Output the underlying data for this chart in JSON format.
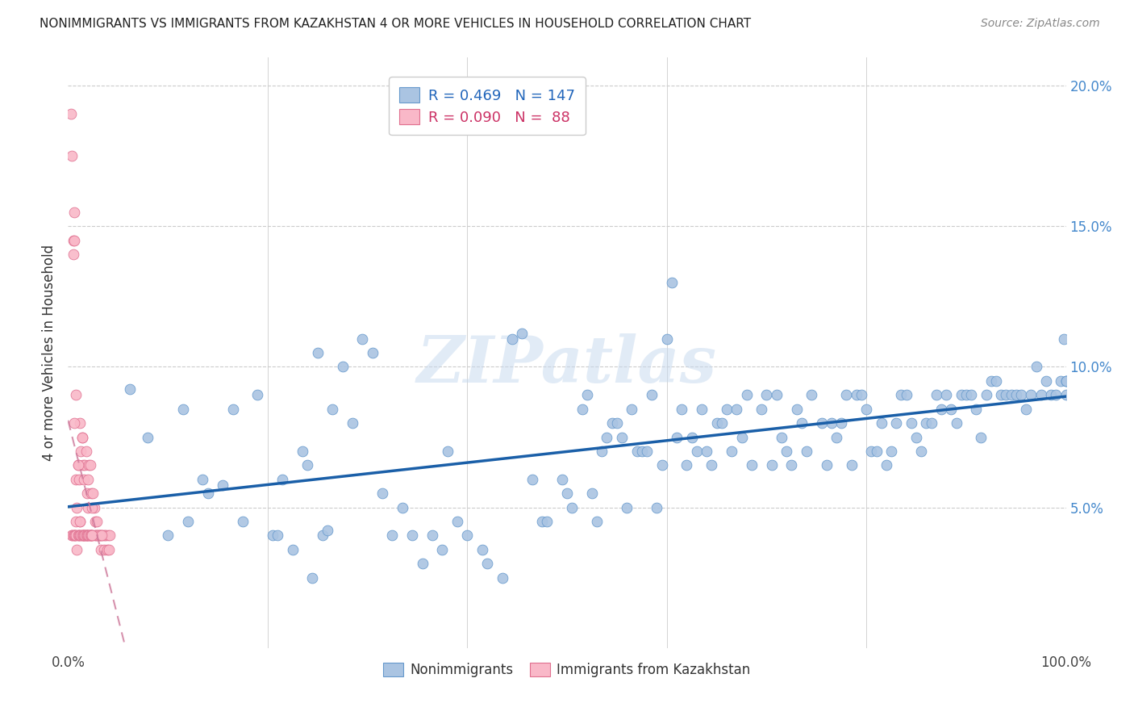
{
  "title": "NONIMMIGRANTS VS IMMIGRANTS FROM KAZAKHSTAN 4 OR MORE VEHICLES IN HOUSEHOLD CORRELATION CHART",
  "source": "Source: ZipAtlas.com",
  "ylabel": "4 or more Vehicles in Household",
  "xmin": 0.0,
  "xmax": 1.0,
  "ymin": 0.0,
  "ymax": 0.21,
  "blue_R": 0.469,
  "blue_N": 147,
  "pink_R": 0.09,
  "pink_N": 88,
  "blue_scatter_color": "#aac4e2",
  "blue_edge_color": "#6699cc",
  "pink_scatter_color": "#f9b8c8",
  "pink_edge_color": "#e07090",
  "blue_line_color": "#1a5fa8",
  "pink_line_color": "#cc7799",
  "watermark": "ZIPatlas",
  "legend_blue_label": "Nonimmigrants",
  "legend_pink_label": "Immigrants from Kazakhstan",
  "blue_x": [
    0.062,
    0.08,
    0.1,
    0.115,
    0.12,
    0.135,
    0.14,
    0.155,
    0.165,
    0.175,
    0.19,
    0.205,
    0.21,
    0.215,
    0.225,
    0.235,
    0.24,
    0.245,
    0.25,
    0.255,
    0.26,
    0.265,
    0.275,
    0.285,
    0.295,
    0.305,
    0.315,
    0.325,
    0.335,
    0.345,
    0.355,
    0.365,
    0.375,
    0.38,
    0.39,
    0.4,
    0.415,
    0.42,
    0.435,
    0.445,
    0.455,
    0.465,
    0.475,
    0.48,
    0.495,
    0.5,
    0.505,
    0.515,
    0.52,
    0.525,
    0.53,
    0.535,
    0.54,
    0.545,
    0.55,
    0.555,
    0.56,
    0.565,
    0.57,
    0.575,
    0.58,
    0.585,
    0.59,
    0.595,
    0.6,
    0.605,
    0.61,
    0.615,
    0.62,
    0.625,
    0.63,
    0.635,
    0.64,
    0.645,
    0.65,
    0.655,
    0.66,
    0.665,
    0.67,
    0.675,
    0.68,
    0.685,
    0.695,
    0.7,
    0.705,
    0.71,
    0.715,
    0.72,
    0.725,
    0.73,
    0.735,
    0.74,
    0.745,
    0.755,
    0.76,
    0.765,
    0.77,
    0.775,
    0.78,
    0.785,
    0.79,
    0.795,
    0.8,
    0.805,
    0.81,
    0.815,
    0.82,
    0.825,
    0.83,
    0.835,
    0.84,
    0.845,
    0.85,
    0.855,
    0.86,
    0.865,
    0.87,
    0.875,
    0.88,
    0.885,
    0.89,
    0.895,
    0.9,
    0.905,
    0.91,
    0.915,
    0.92,
    0.925,
    0.93,
    0.935,
    0.94,
    0.945,
    0.95,
    0.955,
    0.96,
    0.965,
    0.97,
    0.975,
    0.98,
    0.985,
    0.99,
    0.995,
    0.998,
    1.0,
    1.0,
    1.0,
    1.0
  ],
  "blue_y": [
    0.092,
    0.075,
    0.04,
    0.085,
    0.045,
    0.06,
    0.055,
    0.058,
    0.085,
    0.045,
    0.09,
    0.04,
    0.04,
    0.06,
    0.035,
    0.07,
    0.065,
    0.025,
    0.105,
    0.04,
    0.042,
    0.085,
    0.1,
    0.08,
    0.11,
    0.105,
    0.055,
    0.04,
    0.05,
    0.04,
    0.03,
    0.04,
    0.035,
    0.07,
    0.045,
    0.04,
    0.035,
    0.03,
    0.025,
    0.11,
    0.112,
    0.06,
    0.045,
    0.045,
    0.06,
    0.055,
    0.05,
    0.085,
    0.09,
    0.055,
    0.045,
    0.07,
    0.075,
    0.08,
    0.08,
    0.075,
    0.05,
    0.085,
    0.07,
    0.07,
    0.07,
    0.09,
    0.05,
    0.065,
    0.11,
    0.13,
    0.075,
    0.085,
    0.065,
    0.075,
    0.07,
    0.085,
    0.07,
    0.065,
    0.08,
    0.08,
    0.085,
    0.07,
    0.085,
    0.075,
    0.09,
    0.065,
    0.085,
    0.09,
    0.065,
    0.09,
    0.075,
    0.07,
    0.065,
    0.085,
    0.08,
    0.07,
    0.09,
    0.08,
    0.065,
    0.08,
    0.075,
    0.08,
    0.09,
    0.065,
    0.09,
    0.09,
    0.085,
    0.07,
    0.07,
    0.08,
    0.065,
    0.07,
    0.08,
    0.09,
    0.09,
    0.08,
    0.075,
    0.07,
    0.08,
    0.08,
    0.09,
    0.085,
    0.09,
    0.085,
    0.08,
    0.09,
    0.09,
    0.09,
    0.085,
    0.075,
    0.09,
    0.095,
    0.095,
    0.09,
    0.09,
    0.09,
    0.09,
    0.09,
    0.085,
    0.09,
    0.1,
    0.09,
    0.095,
    0.09,
    0.09,
    0.095,
    0.11,
    0.095,
    0.095,
    0.095,
    0.09
  ],
  "pink_x": [
    0.003,
    0.004,
    0.005,
    0.006,
    0.007,
    0.008,
    0.009,
    0.01,
    0.011,
    0.012,
    0.013,
    0.014,
    0.015,
    0.016,
    0.017,
    0.018,
    0.019,
    0.02,
    0.021,
    0.022,
    0.023,
    0.024,
    0.025,
    0.026,
    0.027,
    0.028,
    0.029,
    0.03,
    0.031,
    0.032,
    0.033,
    0.034,
    0.035,
    0.036,
    0.037,
    0.038,
    0.039,
    0.04,
    0.041,
    0.042,
    0.005,
    0.006,
    0.008,
    0.01,
    0.012,
    0.014,
    0.016,
    0.018,
    0.02,
    0.022,
    0.024,
    0.026,
    0.028,
    0.03,
    0.032,
    0.034,
    0.004,
    0.006,
    0.008,
    0.01,
    0.012,
    0.014,
    0.016,
    0.018,
    0.02,
    0.022,
    0.024,
    0.004,
    0.005,
    0.006,
    0.007,
    0.008,
    0.009,
    0.01,
    0.011,
    0.012,
    0.013,
    0.014,
    0.015,
    0.016,
    0.017,
    0.018,
    0.019,
    0.02,
    0.021,
    0.022,
    0.023,
    0.024
  ],
  "pink_y": [
    0.19,
    0.175,
    0.145,
    0.155,
    0.04,
    0.06,
    0.05,
    0.065,
    0.06,
    0.08,
    0.07,
    0.075,
    0.065,
    0.06,
    0.065,
    0.07,
    0.055,
    0.06,
    0.065,
    0.065,
    0.055,
    0.04,
    0.055,
    0.05,
    0.045,
    0.04,
    0.045,
    0.04,
    0.04,
    0.04,
    0.035,
    0.04,
    0.04,
    0.035,
    0.04,
    0.04,
    0.035,
    0.04,
    0.035,
    0.04,
    0.14,
    0.145,
    0.09,
    0.065,
    0.045,
    0.075,
    0.04,
    0.04,
    0.05,
    0.04,
    0.05,
    0.04,
    0.04,
    0.04,
    0.04,
    0.04,
    0.04,
    0.08,
    0.045,
    0.04,
    0.045,
    0.04,
    0.04,
    0.04,
    0.04,
    0.04,
    0.04,
    0.04,
    0.04,
    0.04,
    0.04,
    0.04,
    0.035,
    0.04,
    0.04,
    0.04,
    0.04,
    0.04,
    0.04,
    0.04,
    0.04,
    0.04,
    0.04,
    0.04,
    0.04,
    0.04,
    0.04,
    0.04
  ]
}
